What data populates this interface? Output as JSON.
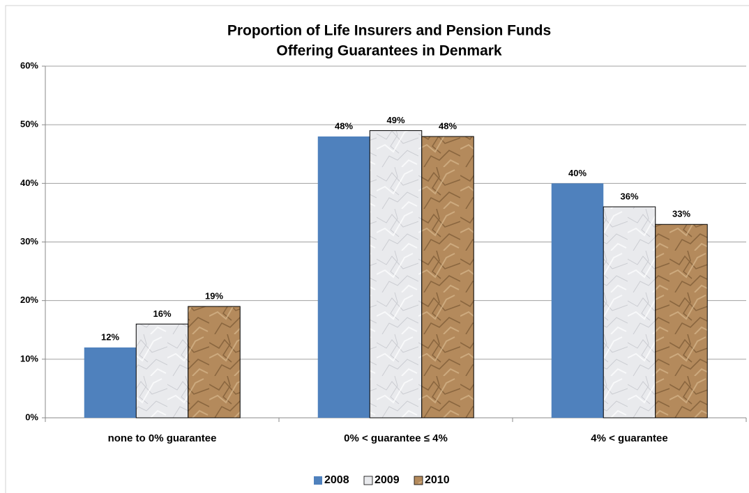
{
  "chart_data": {
    "type": "bar",
    "title": [
      "Proportion of Life Insurers and Pension Funds",
      "Offering Guarantees in Denmark"
    ],
    "categories": [
      "none to 0% guarantee",
      "0% < guarantee ≤ 4%",
      "4% < guarantee"
    ],
    "series": [
      {
        "name": "2008",
        "color": "#4f81bd",
        "values": [
          12,
          48,
          40
        ],
        "value_labels": [
          "12%",
          "48%",
          "40%"
        ]
      },
      {
        "name": "2009",
        "color": "#e9eaed",
        "values": [
          16,
          49,
          36
        ],
        "value_labels": [
          "16%",
          "49%",
          "36%"
        ]
      },
      {
        "name": "2010",
        "color": "#b48a5c",
        "values": [
          19,
          48,
          33
        ],
        "value_labels": [
          "19%",
          "48%",
          "33%"
        ]
      }
    ],
    "ylim": [
      0,
      60
    ],
    "yticks": [
      {
        "value": 0,
        "label": "0%"
      },
      {
        "value": 10,
        "label": "10%"
      },
      {
        "value": 20,
        "label": "20%"
      },
      {
        "value": 30,
        "label": "30%"
      },
      {
        "value": 40,
        "label": "40%"
      },
      {
        "value": 50,
        "label": "50%"
      },
      {
        "value": 60,
        "label": "60%"
      }
    ],
    "grid": true,
    "legend": "bottom"
  }
}
